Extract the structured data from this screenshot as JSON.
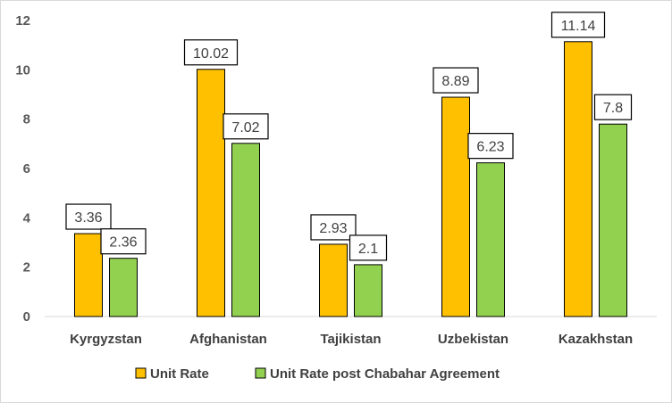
{
  "chart_data": {
    "type": "bar",
    "title": "",
    "xlabel": "",
    "ylabel": "",
    "categories": [
      "Kyrgyzstan",
      "Afghanistan",
      "Tajikistan",
      "Uzbekistan",
      "Kazakhstan"
    ],
    "series": [
      {
        "name": "Unit Rate",
        "values": [
          3.36,
          10.02,
          2.93,
          8.89,
          11.14
        ],
        "labels": [
          "3.36",
          "10.02",
          "2.93",
          "8.89",
          "11.14"
        ],
        "color": "#FFC000"
      },
      {
        "name": "Unit Rate post Chabahar Agreement",
        "values": [
          2.36,
          7.02,
          2.1,
          6.23,
          7.8
        ],
        "labels": [
          "2.36",
          "7.02",
          "2.1",
          "6.23",
          "7.8"
        ],
        "color": "#92D050"
      }
    ],
    "ylim": [
      0,
      12
    ],
    "yticks": [
      "0",
      "2",
      "4",
      "6",
      "8",
      "10",
      "12"
    ],
    "grid": false,
    "legend_position": "bottom"
  }
}
